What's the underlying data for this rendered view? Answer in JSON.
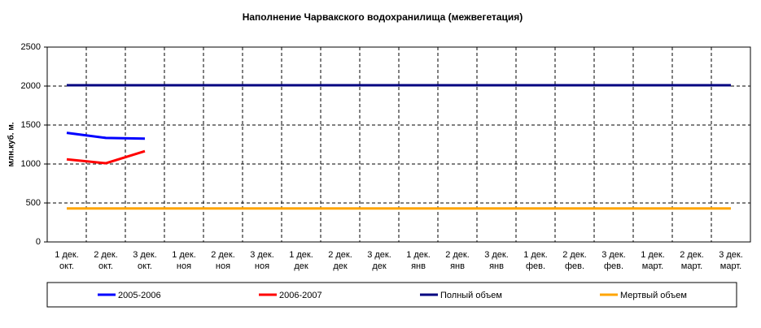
{
  "chart_data": {
    "type": "line",
    "title": "Наполнение Чарвакского водохранилища  (межвегетация)",
    "ylabel": "млн.куб. м.",
    "categories": [
      [
        "1 дек.",
        "окт."
      ],
      [
        "2 дек.",
        "окт."
      ],
      [
        "3 дек.",
        "окт."
      ],
      [
        "1 дек.",
        "ноя"
      ],
      [
        "2 дек.",
        "ноя"
      ],
      [
        "3 дек.",
        "ноя"
      ],
      [
        "1 дек.",
        "дек"
      ],
      [
        "2 дек.",
        "дек"
      ],
      [
        "3 дек.",
        "дек"
      ],
      [
        "1 дек.",
        "янв"
      ],
      [
        "2 дек.",
        "янв"
      ],
      [
        "3 дек.",
        "янв"
      ],
      [
        "1 дек.",
        "фев."
      ],
      [
        "2 дек.",
        "фев."
      ],
      [
        "3 дек.",
        "фев."
      ],
      [
        "1 дек.",
        "март."
      ],
      [
        "2 дек.",
        "март."
      ],
      [
        "3 дек.",
        "март."
      ]
    ],
    "series": [
      {
        "name": "2005-2006",
        "color": "#0000ff",
        "values": [
          1400,
          1335,
          1325,
          null,
          null,
          null,
          null,
          null,
          null,
          null,
          null,
          null,
          null,
          null,
          null,
          null,
          null,
          null
        ]
      },
      {
        "name": "2006-2007",
        "color": "#ff0000",
        "values": [
          1060,
          1010,
          1165,
          null,
          null,
          null,
          null,
          null,
          null,
          null,
          null,
          null,
          null,
          null,
          null,
          null,
          null,
          null
        ]
      },
      {
        "name": "Полный объем",
        "color": "#000080",
        "values": [
          2010,
          2010,
          2010,
          2010,
          2010,
          2010,
          2010,
          2010,
          2010,
          2010,
          2010,
          2010,
          2010,
          2010,
          2010,
          2010,
          2010,
          2010
        ]
      },
      {
        "name": "Мертвый объем",
        "color": "#ffa500",
        "values": [
          430,
          430,
          430,
          430,
          430,
          430,
          430,
          430,
          430,
          430,
          430,
          430,
          430,
          430,
          430,
          430,
          430,
          430
        ]
      }
    ],
    "ylim": [
      0,
      2500
    ],
    "yticks": [
      0,
      500,
      1000,
      1500,
      2000,
      2500
    ],
    "grid": true,
    "legend": "bottom"
  }
}
